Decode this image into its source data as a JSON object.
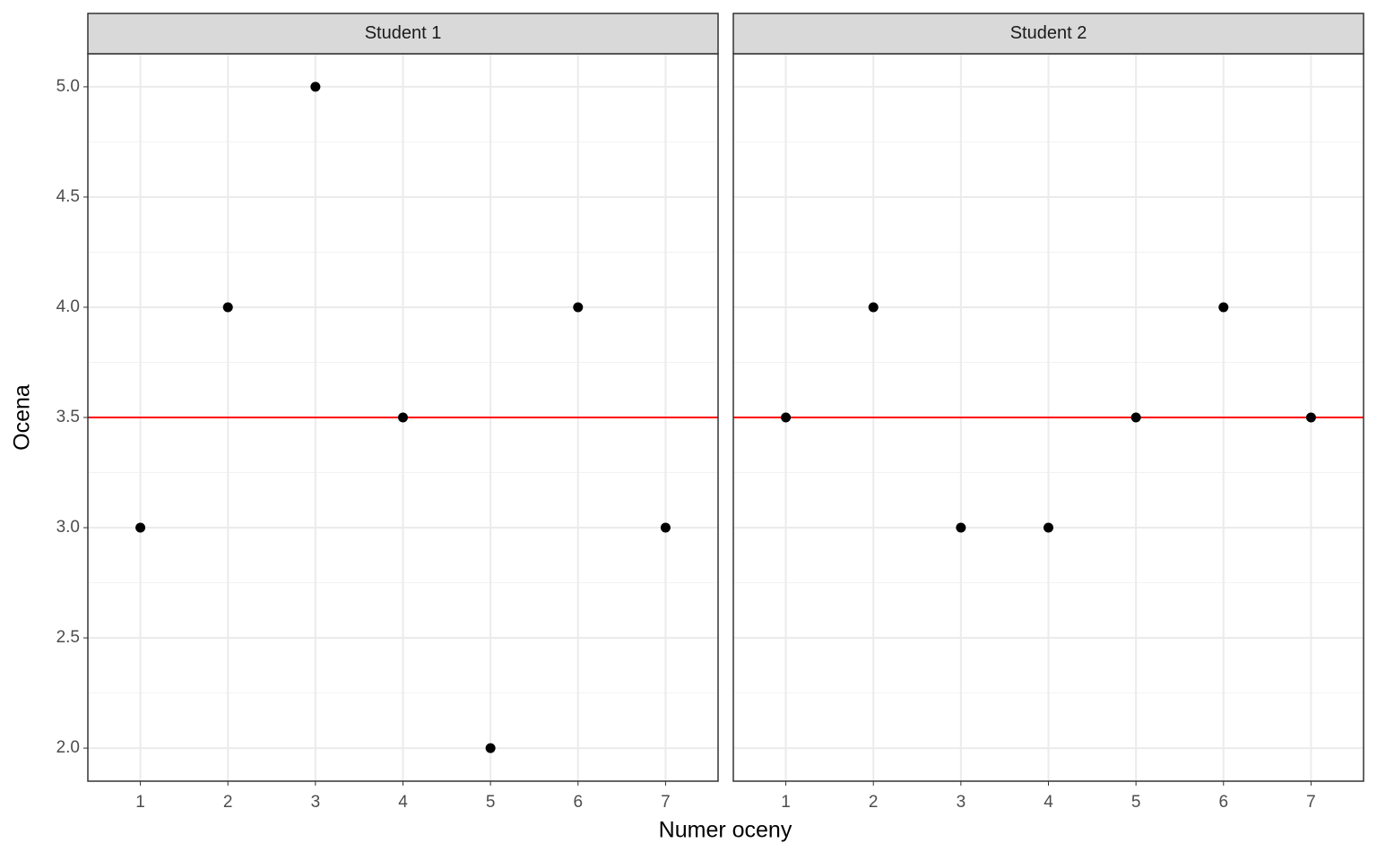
{
  "xlabel": "Numer oceny",
  "ylabel": "Ocena",
  "chart_data": [
    {
      "type": "scatter",
      "title": "Student 1",
      "x": [
        1,
        2,
        3,
        4,
        5,
        6,
        7
      ],
      "values": [
        3,
        4,
        5,
        3.5,
        2,
        4,
        3
      ],
      "color": "#000000",
      "reference_line": {
        "value": 3.5,
        "color": "#ff0000"
      },
      "xlim": [
        0.4,
        7.6
      ],
      "ylim": [
        1.85,
        5.15
      ],
      "xticks": [
        1,
        2,
        3,
        4,
        5,
        6,
        7
      ],
      "yticks": [
        {
          "value": 2,
          "label": "2.0"
        },
        2.5,
        {
          "value": 3,
          "label": "3.0"
        },
        3.5,
        {
          "value": 4,
          "label": "4.0"
        },
        4.5,
        {
          "value": 5,
          "label": "5.0"
        }
      ],
      "grid": true
    },
    {
      "type": "scatter",
      "title": "Student 2",
      "x": [
        1,
        2,
        3,
        4,
        5,
        6,
        7
      ],
      "values": [
        3.5,
        4,
        3,
        3,
        3.5,
        4,
        3.5
      ],
      "color": "#000000",
      "reference_line": {
        "value": 3.5,
        "color": "#ff0000"
      },
      "xlim": [
        0.4,
        7.6
      ],
      "ylim": [
        1.85,
        5.15
      ],
      "xticks": [
        1,
        2,
        3,
        4,
        5,
        6,
        7
      ],
      "yticks": [
        2,
        2.5,
        3,
        3.5,
        4,
        4.5,
        5
      ],
      "grid": true
    }
  ]
}
